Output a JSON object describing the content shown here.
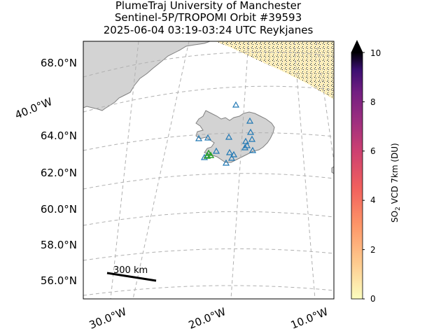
{
  "header": {
    "line1": "PlumeTraj    University of Manchester",
    "line2": "Sentinel-5P/TROPOMI Orbit #39593",
    "line3": "2025-06-04   03:19-03:24 UTC   Reykjanes"
  },
  "map": {
    "lat_labels": [
      "68.0°N",
      "64.0°N",
      "62.0°N",
      "60.0°N",
      "58.0°N",
      "56.0°N"
    ],
    "lon_label_side": "40.0°W",
    "lon_labels": [
      "30.0°W",
      "20.0°W",
      "10.0°W"
    ],
    "scale_bar_label": "300 km",
    "land_color": "#d3d3d3",
    "coast_color": "#808080",
    "grid_color": "#b0b0b0",
    "volcano_marker_color": "#1f77b4",
    "active_volcano_color": "#2ca02c"
  },
  "colorbar": {
    "label_prefix": "SO",
    "label_sub": "2",
    "label_suffix": " VCD 7km (DU)",
    "ticks": [
      "0",
      "2",
      "4",
      "6",
      "8",
      "10"
    ],
    "min": 0,
    "max": 10,
    "extend": "max",
    "colormap": "magma_r"
  }
}
